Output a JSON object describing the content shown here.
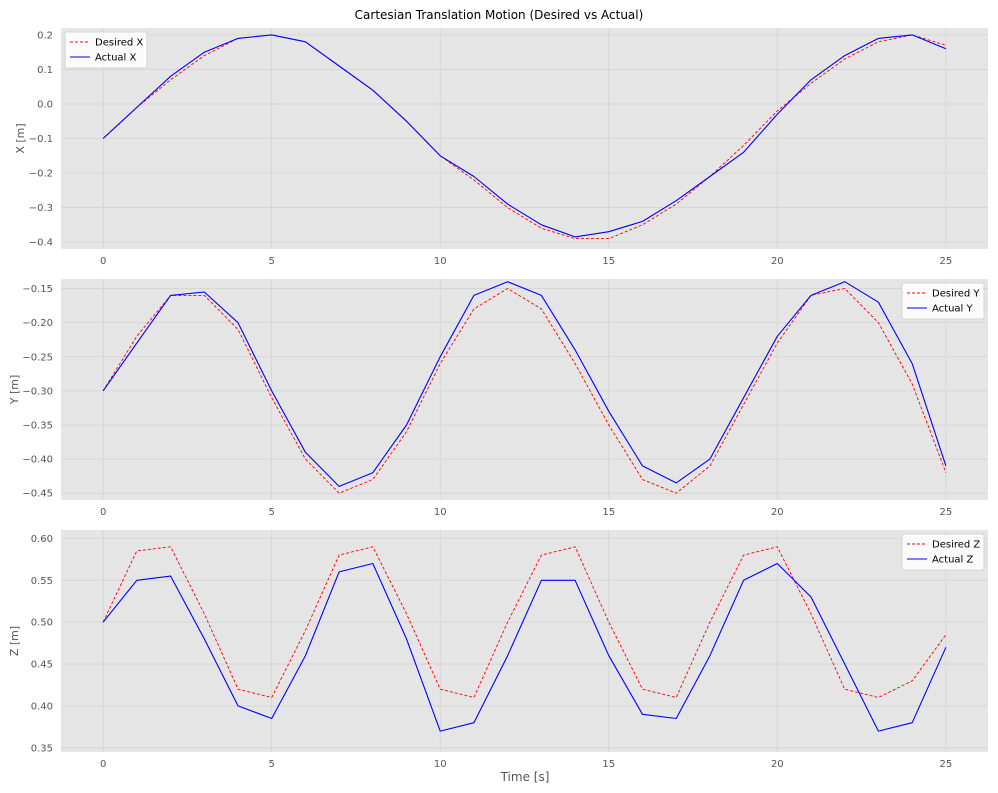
{
  "figure": {
    "title": "Cartesian Translation Motion (Desired vs Actual)",
    "xlabel": "Time [s]"
  },
  "colors": {
    "background": "#ffffff",
    "plot_bg": "#e5e5e5",
    "grid": "#d3d3d3",
    "tick_text": "#555555",
    "label_text": "#555555",
    "desired": "#ff0000",
    "actual": "#0000ff"
  },
  "chart_data": [
    {
      "type": "line",
      "ylabel": "X [m]",
      "xlim": [
        -1.25,
        26.25
      ],
      "ylim": [
        -0.42,
        0.22
      ],
      "xticks": [
        0,
        5,
        10,
        15,
        20,
        25
      ],
      "xtick_labels": [
        "0",
        "5",
        "10",
        "15",
        "20",
        "25"
      ],
      "yticks": [
        -0.4,
        -0.3,
        -0.2,
        -0.1,
        0.0,
        0.1,
        0.2
      ],
      "ytick_labels": [
        "−0.4",
        "−0.3",
        "−0.2",
        "−0.1",
        "0.0",
        "0.1",
        "0.2"
      ],
      "grid": true,
      "legend_position": "top-left",
      "x": [
        0,
        1,
        2,
        3,
        4,
        5,
        6,
        7,
        8,
        9,
        10,
        11,
        12,
        13,
        14,
        15,
        16,
        17,
        18,
        19,
        20,
        21,
        22,
        23,
        24,
        25
      ],
      "series": [
        {
          "name": "Desired X",
          "style": "dashed",
          "color": "#ff0000",
          "values": [
            -0.1,
            -0.01,
            0.07,
            0.14,
            0.19,
            0.2,
            0.18,
            0.11,
            0.04,
            -0.05,
            -0.15,
            -0.22,
            -0.3,
            -0.36,
            -0.39,
            -0.39,
            -0.35,
            -0.29,
            -0.21,
            -0.12,
            -0.02,
            0.06,
            0.13,
            0.18,
            0.2,
            0.17
          ]
        },
        {
          "name": "Actual X",
          "style": "solid",
          "color": "#0000ff",
          "values": [
            -0.1,
            -0.01,
            0.08,
            0.15,
            0.19,
            0.2,
            0.18,
            0.11,
            0.04,
            -0.05,
            -0.15,
            -0.21,
            -0.29,
            -0.35,
            -0.385,
            -0.37,
            -0.34,
            -0.28,
            -0.21,
            -0.14,
            -0.03,
            0.07,
            0.14,
            0.19,
            0.2,
            0.16
          ]
        }
      ]
    },
    {
      "type": "line",
      "ylabel": "Y [m]",
      "xlim": [
        -1.25,
        26.25
      ],
      "ylim": [
        -0.46,
        -0.136
      ],
      "xticks": [
        0,
        5,
        10,
        15,
        20,
        25
      ],
      "xtick_labels": [
        "0",
        "5",
        "10",
        "15",
        "20",
        "25"
      ],
      "yticks": [
        -0.45,
        -0.4,
        -0.35,
        -0.3,
        -0.25,
        -0.2,
        -0.15
      ],
      "ytick_labels": [
        "−0.45",
        "−0.40",
        "−0.35",
        "−0.30",
        "−0.25",
        "−0.20",
        "−0.15"
      ],
      "grid": true,
      "legend_position": "top-right",
      "x": [
        0,
        1,
        2,
        3,
        4,
        5,
        6,
        7,
        8,
        9,
        10,
        11,
        12,
        13,
        14,
        15,
        16,
        17,
        18,
        19,
        20,
        21,
        22,
        23,
        24,
        25
      ],
      "series": [
        {
          "name": "Desired Y",
          "style": "dashed",
          "color": "#ff0000",
          "values": [
            -0.3,
            -0.22,
            -0.16,
            -0.16,
            -0.21,
            -0.31,
            -0.4,
            -0.45,
            -0.43,
            -0.36,
            -0.26,
            -0.18,
            -0.15,
            -0.18,
            -0.26,
            -0.35,
            -0.43,
            -0.45,
            -0.41,
            -0.32,
            -0.23,
            -0.16,
            -0.15,
            -0.2,
            -0.29,
            -0.42
          ]
        },
        {
          "name": "Actual Y",
          "style": "solid",
          "color": "#0000ff",
          "values": [
            -0.3,
            -0.23,
            -0.16,
            -0.155,
            -0.2,
            -0.3,
            -0.39,
            -0.44,
            -0.42,
            -0.35,
            -0.25,
            -0.16,
            -0.14,
            -0.16,
            -0.24,
            -0.33,
            -0.41,
            -0.435,
            -0.4,
            -0.31,
            -0.22,
            -0.16,
            -0.14,
            -0.17,
            -0.26,
            -0.41
          ]
        }
      ]
    },
    {
      "type": "line",
      "ylabel": "Z [m]",
      "xlim": [
        -1.25,
        26.25
      ],
      "ylim": [
        0.345,
        0.61
      ],
      "xticks": [
        0,
        5,
        10,
        15,
        20,
        25
      ],
      "xtick_labels": [
        "0",
        "5",
        "10",
        "15",
        "20",
        "25"
      ],
      "yticks": [
        0.35,
        0.4,
        0.45,
        0.5,
        0.55,
        0.6
      ],
      "ytick_labels": [
        "0.35",
        "0.40",
        "0.45",
        "0.50",
        "0.55",
        "0.60"
      ],
      "grid": true,
      "legend_position": "top-right",
      "x": [
        0,
        1,
        2,
        3,
        4,
        5,
        6,
        7,
        8,
        9,
        10,
        11,
        12,
        13,
        14,
        15,
        16,
        17,
        18,
        19,
        20,
        21,
        22,
        23,
        24,
        25
      ],
      "series": [
        {
          "name": "Desired Z",
          "style": "dashed",
          "color": "#ff0000",
          "values": [
            0.5,
            0.585,
            0.59,
            0.51,
            0.42,
            0.41,
            0.49,
            0.58,
            0.59,
            0.51,
            0.42,
            0.41,
            0.5,
            0.58,
            0.59,
            0.5,
            0.42,
            0.41,
            0.5,
            0.58,
            0.59,
            0.51,
            0.42,
            0.41,
            0.43,
            0.485
          ]
        },
        {
          "name": "Actual Z",
          "style": "solid",
          "color": "#0000ff",
          "values": [
            0.5,
            0.55,
            0.555,
            0.48,
            0.4,
            0.385,
            0.46,
            0.56,
            0.57,
            0.48,
            0.37,
            0.38,
            0.46,
            0.55,
            0.55,
            0.46,
            0.39,
            0.385,
            0.46,
            0.55,
            0.57,
            0.53,
            0.45,
            0.37,
            0.38,
            0.47
          ]
        }
      ]
    }
  ]
}
